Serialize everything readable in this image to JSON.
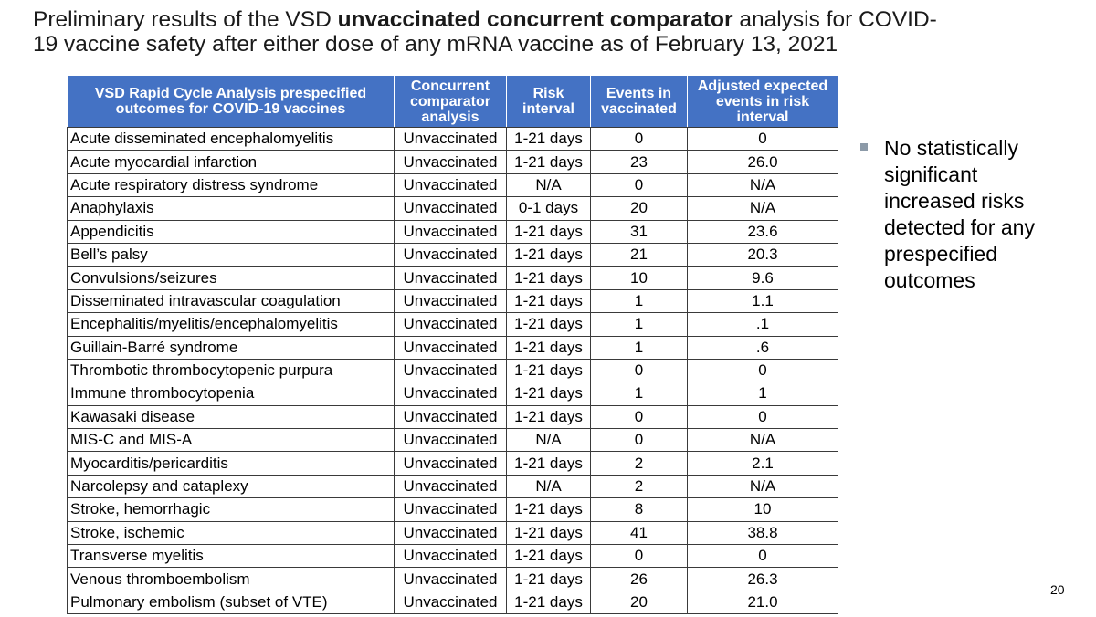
{
  "title": {
    "part1": "Preliminary results of the VSD ",
    "bold": "unvaccinated concurrent comparator",
    "part2": " analysis for COVID-19 vaccine safety after either dose of any mRNA vaccine as of February 13, 2021"
  },
  "table": {
    "headers": [
      "VSD Rapid Cycle Analysis prespecified outcomes for COVID-19 vaccines",
      "Concurrent comparator analysis",
      "Risk interval",
      "Events in vaccinated",
      "Adjusted expected events in risk interval"
    ],
    "rows": [
      [
        "Acute disseminated encephalomyelitis",
        "Unvaccinated",
        "1-21 days",
        "0",
        "0"
      ],
      [
        "Acute myocardial infarction",
        "Unvaccinated",
        "1-21 days",
        "23",
        "26.0"
      ],
      [
        "Acute respiratory distress syndrome",
        "Unvaccinated",
        "N/A",
        "0",
        "N/A"
      ],
      [
        "Anaphylaxis",
        "Unvaccinated",
        "0-1 days",
        "20",
        "N/A"
      ],
      [
        "Appendicitis",
        "Unvaccinated",
        "1-21 days",
        "31",
        "23.6"
      ],
      [
        "Bell’s palsy",
        "Unvaccinated",
        "1-21 days",
        "21",
        "20.3"
      ],
      [
        "Convulsions/seizures",
        "Unvaccinated",
        "1-21 days",
        "10",
        "9.6"
      ],
      [
        "Disseminated intravascular coagulation",
        "Unvaccinated",
        "1-21 days",
        "1",
        "1.1"
      ],
      [
        "Encephalitis/myelitis/encephalomyelitis",
        "Unvaccinated",
        "1-21 days",
        "1",
        ".1"
      ],
      [
        "Guillain-Barré syndrome",
        "Unvaccinated",
        "1-21 days",
        "1",
        ".6"
      ],
      [
        "Thrombotic thrombocytopenic purpura",
        "Unvaccinated",
        "1-21 days",
        "0",
        "0"
      ],
      [
        "Immune thrombocytopenia",
        "Unvaccinated",
        "1-21 days",
        "1",
        "1"
      ],
      [
        "Kawasaki disease",
        "Unvaccinated",
        "1-21 days",
        "0",
        "0"
      ],
      [
        "MIS-C and MIS-A",
        "Unvaccinated",
        "N/A",
        "0",
        "N/A"
      ],
      [
        "Myocarditis/pericarditis",
        "Unvaccinated",
        "1-21 days",
        "2",
        "2.1"
      ],
      [
        "Narcolepsy and cataplexy",
        "Unvaccinated",
        "N/A",
        "2",
        "N/A"
      ],
      [
        "Stroke, hemorrhagic",
        "Unvaccinated",
        "1-21 days",
        "8",
        "10"
      ],
      [
        "Stroke, ischemic",
        "Unvaccinated",
        "1-21 days",
        "41",
        "38.8"
      ],
      [
        "Transverse myelitis",
        "Unvaccinated",
        "1-21 days",
        "0",
        "0"
      ],
      [
        "Venous thromboembolism",
        "Unvaccinated",
        "1-21 days",
        "26",
        "26.3"
      ],
      [
        "Pulmonary embolism (subset of VTE)",
        "Unvaccinated",
        "1-21 days",
        "20",
        "21.0"
      ]
    ]
  },
  "bullet": {
    "icon": "square-bullet-icon",
    "text": "No statistically significant increased risks detected for any prespecified outcomes"
  },
  "page_number": "20",
  "colors": {
    "header_bg": "#4472c4",
    "header_text": "#ffffff",
    "bullet_marker": "#8c9aa8"
  }
}
